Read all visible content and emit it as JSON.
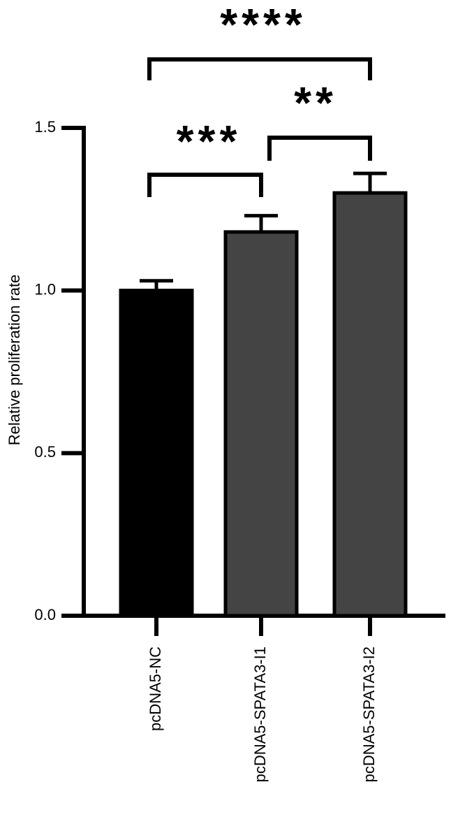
{
  "chart_data": {
    "type": "bar",
    "y_label": "Relative proliferation rate",
    "categories": [
      "pcDNA5-NC",
      "pcDNA5-SPATA3-I1",
      "pcDNA5-SPATA3-I2"
    ],
    "values": [
      1.0,
      1.18,
      1.3
    ],
    "errors": [
      0.03,
      0.05,
      0.06
    ],
    "colors": [
      "#000000",
      "#444444",
      "#444444"
    ],
    "ylim": [
      0,
      1.5
    ],
    "yticks": [
      {
        "value": 0,
        "label": "0.0"
      },
      {
        "value": 0.5,
        "label": "0.5"
      },
      {
        "value": 1,
        "label": "1.0"
      },
      {
        "value": 1.5,
        "label": "1.5"
      }
    ],
    "significance": [
      {
        "pair": [
          0,
          1
        ],
        "label": "***"
      },
      {
        "pair": [
          1,
          2
        ],
        "label": "**"
      },
      {
        "pair": [
          0,
          2
        ],
        "label": "****"
      }
    ]
  }
}
